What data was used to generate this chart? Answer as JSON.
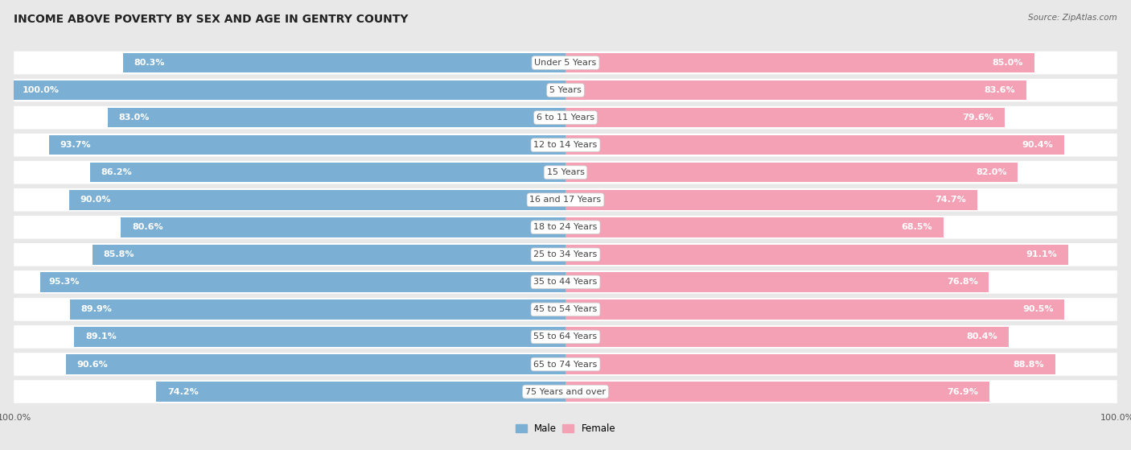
{
  "title": "INCOME ABOVE POVERTY BY SEX AND AGE IN GENTRY COUNTY",
  "source": "Source: ZipAtlas.com",
  "categories": [
    "Under 5 Years",
    "5 Years",
    "6 to 11 Years",
    "12 to 14 Years",
    "15 Years",
    "16 and 17 Years",
    "18 to 24 Years",
    "25 to 34 Years",
    "35 to 44 Years",
    "45 to 54 Years",
    "55 to 64 Years",
    "65 to 74 Years",
    "75 Years and over"
  ],
  "male_values": [
    80.3,
    100.0,
    83.0,
    93.7,
    86.2,
    90.0,
    80.6,
    85.8,
    95.3,
    89.9,
    89.1,
    90.6,
    74.2
  ],
  "female_values": [
    85.0,
    83.6,
    79.6,
    90.4,
    82.0,
    74.7,
    68.5,
    91.1,
    76.8,
    90.5,
    80.4,
    88.8,
    76.9
  ],
  "male_color": "#7bafd4",
  "female_color": "#f4a0b5",
  "male_label": "Male",
  "female_label": "Female",
  "background_color": "#e8e8e8",
  "row_bg_color": "#ffffff",
  "max_value": 100.0,
  "title_fontsize": 10,
  "label_fontsize": 8,
  "tick_fontsize": 8,
  "legend_fontsize": 8.5,
  "source_fontsize": 7.5
}
